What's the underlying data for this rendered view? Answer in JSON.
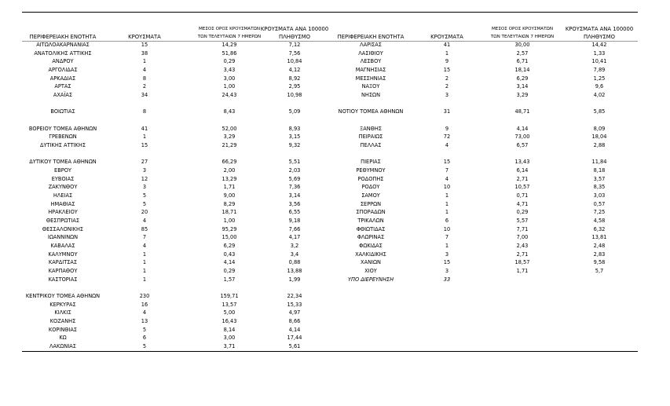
{
  "table": {
    "headers": [
      [
        "ΠΕΡΙΦΕΡΕΙΑΚΗ ΕΝΟΤΗΤΑ"
      ],
      [
        "ΚΡΟΥΣΜΑΤΑ"
      ],
      [
        "ΜΕΣΟΣ ΟΡΟΣ ΚΡΟΥΣΜΑΤΩΝ",
        "ΤΩΝ ΤΕΛΕΥΤΑΙΩΝ 7 ΗΜΕΡΩΝ"
      ],
      [
        "ΚΡΟΥΣΜΑΤΑ ΑΝΑ 100000",
        "ΠΛΗΘΥΣΜΟ"
      ],
      [
        "ΠΕΡΙΦΕΡΕΙΑΚΗ ΕΝΟΤΗΤΑ"
      ],
      [
        "ΚΡΟΥΣΜΑΤΑ"
      ],
      [
        "ΜΕΣΟΣ ΟΡΟΣ ΚΡΟΥΣΜΑΤΩΝ",
        "ΤΩΝ ΤΕΛΕΥΤΑΙΩΝ 7 ΗΜΕΡΩΝ"
      ],
      [
        "ΚΡΟΥΣΜΑΤΑ ΑΝΑ 100000",
        "ΠΛΗΘΥΣΜΟ"
      ]
    ],
    "rows": [
      [
        "ΑΙΤΩΛΟΑΚΑΡΝΑΝΙΑΣ",
        "15",
        "14,29",
        "7,12",
        "ΛΑΡΙΣΑΣ",
        "41",
        "30,00",
        "14,42"
      ],
      [
        "ΑΝΑΤΟΛΙΚΗΣ ΑΤΤΙΚΗΣ",
        "38",
        "51,86",
        "7,56",
        "ΛΑΣΙΘΙΟΥ",
        "1",
        "2,57",
        "1,33"
      ],
      [
        "ΑΝΔΡΟΥ",
        "1",
        "0,29",
        "10,84",
        "ΛΕΣΒΟΥ",
        "9",
        "6,71",
        "10,41"
      ],
      [
        "ΑΡΓΟΛΙΔΑΣ",
        "4",
        "3,43",
        "4,12",
        "ΜΑΓΝΗΣΙΑΣ",
        "15",
        "18,14",
        "7,89"
      ],
      [
        "ΑΡΚΑΔΙΑΣ",
        "8",
        "3,00",
        "8,92",
        "ΜΕΣΣΗΝΙΑΣ",
        "2",
        "6,29",
        "1,25"
      ],
      [
        "ΑΡΤΑΣ",
        "2",
        "1,00",
        "2,95",
        "ΝΑΞΟΥ",
        "2",
        "3,14",
        "9,6"
      ],
      [
        "ΑΧΑΪΑΣ",
        "34",
        "24,43",
        "10,98",
        "ΝΗΣΩΝ",
        "3",
        "3,29",
        "4,02"
      ],
      [
        null,
        null,
        null,
        null,
        null,
        null,
        null,
        null
      ],
      [
        "ΒΟΙΩΤΙΑΣ",
        "8",
        "8,43",
        "5,09",
        "ΝΟΤΙΟΥ ΤΟΜΕΑ ΑΘΗΝΩΝ",
        "31",
        "48,71",
        "5,85"
      ],
      [
        null,
        null,
        null,
        null,
        null,
        null,
        null,
        null
      ],
      [
        "ΒΟΡΕΙΟΥ ΤΟΜΕΑ ΑΘΗΝΩΝ",
        "41",
        "52,00",
        "8,93",
        "ΞΑΝΘΗΣ",
        "9",
        "4,14",
        "8,09"
      ],
      [
        "ΓΡΕΒΕΝΩΝ",
        "1",
        "3,29",
        "3,15",
        "ΠΕΙΡΑΙΩΣ",
        "72",
        "73,00",
        "18,04"
      ],
      [
        "ΔΥΤΙΚΗΣ ΑΤΤΙΚΗΣ",
        "15",
        "21,29",
        "9,32",
        "ΠΕΛΛΑΣ",
        "4",
        "6,57",
        "2,88"
      ],
      [
        null,
        null,
        null,
        null,
        null,
        null,
        null,
        null
      ],
      [
        "ΔΥΤΙΚΟΥ ΤΟΜΕΑ ΑΘΗΝΩΝ",
        "27",
        "66,29",
        "5,51",
        "ΠΙΕΡΙΑΣ",
        "15",
        "13,43",
        "11,84"
      ],
      [
        "ΕΒΡΟΥ",
        "3",
        "2,00",
        "2,03",
        "ΡΕΘΥΜΝΟΥ",
        "7",
        "6,14",
        "8,18"
      ],
      [
        "ΕΥΒΟΙΑΣ",
        "12",
        "13,29",
        "5,69",
        "ΡΟΔΟΠΗΣ",
        "4",
        "2,71",
        "3,57"
      ],
      [
        "ΖΑΚΥΝΘΟΥ",
        "3",
        "1,71",
        "7,36",
        "ΡΟΔΟΥ",
        "10",
        "10,57",
        "8,35"
      ],
      [
        "ΗΛΕΙΑΣ",
        "5",
        "9,00",
        "3,14",
        "ΣΑΜΟΥ",
        "1",
        "0,71",
        "3,03"
      ],
      [
        "ΗΜΑΘΙΑΣ",
        "5",
        "8,29",
        "3,56",
        "ΣΕΡΡΩΝ",
        "1",
        "4,71",
        "0,57"
      ],
      [
        "ΗΡΑΚΛΕΙΟΥ",
        "20",
        "18,71",
        "6,55",
        "ΣΠΟΡΑΔΩΝ",
        "1",
        "0,29",
        "7,25"
      ],
      [
        "ΘΕΣΠΡΩΤΙΑΣ",
        "4",
        "1,00",
        "9,18",
        "ΤΡΙΚΑΛΩΝ",
        "6",
        "5,57",
        "4,58"
      ],
      [
        "ΘΕΣΣΑΛΟΝΙΚΗΣ",
        "85",
        "95,29",
        "7,66",
        "ΦΘΙΩΤΙΔΑΣ",
        "10",
        "7,71",
        "6,32"
      ],
      [
        "ΙΩΑΝΝΙΝΩΝ",
        "7",
        "15,00",
        "4,17",
        "ΦΛΩΡΙΝΑΣ",
        "7",
        "7,00",
        "13,81"
      ],
      [
        "ΚΑΒΑΛΑΣ",
        "4",
        "6,29",
        "3,2",
        "ΦΩΚΙΔΑΣ",
        "1",
        "2,43",
        "2,48"
      ],
      [
        "ΚΑΛΥΜΝΟΥ",
        "1",
        "0,43",
        "3,4",
        "ΧΑΛΚΙΔΙΚΗΣ",
        "3",
        "2,71",
        "2,83"
      ],
      [
        "ΚΑΡΔΙΤΣΑΣ",
        "1",
        "4,14",
        "0,88",
        "ΧΑΝΙΩΝ",
        "15",
        "18,57",
        "9,58"
      ],
      [
        "ΚΑΡΠΑΘΟΥ",
        "1",
        "0,29",
        "13,88",
        "ΧΙΟΥ",
        "3",
        "1,71",
        "5,7"
      ],
      [
        "ΚΑΣΤΟΡΙΑΣ",
        "1",
        "1,57",
        "1,99",
        "ΥΠΟ ΔΙΕΡΕΥΝΗΣΗ",
        "33",
        null,
        null
      ],
      [
        null,
        null,
        null,
        null,
        null,
        null,
        null,
        null
      ],
      [
        "ΚΕΝΤΡΙΚΟΥ ΤΟΜΕΑ ΑΘΗΝΩΝ",
        "230",
        "159,71",
        "22,34",
        null,
        null,
        null,
        null
      ],
      [
        "ΚΕΡΚΥΡΑΣ",
        "16",
        "13,57",
        "15,33",
        null,
        null,
        null,
        null
      ],
      [
        "ΚΙΛΚΙΣ",
        "4",
        "5,00",
        "4,97",
        null,
        null,
        null,
        null
      ],
      [
        "ΚΟΖΑΝΗΣ",
        "13",
        "16,43",
        "8,66",
        null,
        null,
        null,
        null
      ],
      [
        "ΚΟΡΙΝΘΙΑΣ",
        "5",
        "8,14",
        "4,14",
        null,
        null,
        null,
        null
      ],
      [
        "ΚΩ",
        "6",
        "3,00",
        "17,44",
        null,
        null,
        null,
        null
      ],
      [
        "ΛΑΚΩΝΙΑΣ",
        "5",
        "3,71",
        "5,61",
        null,
        null,
        null,
        null
      ]
    ]
  }
}
